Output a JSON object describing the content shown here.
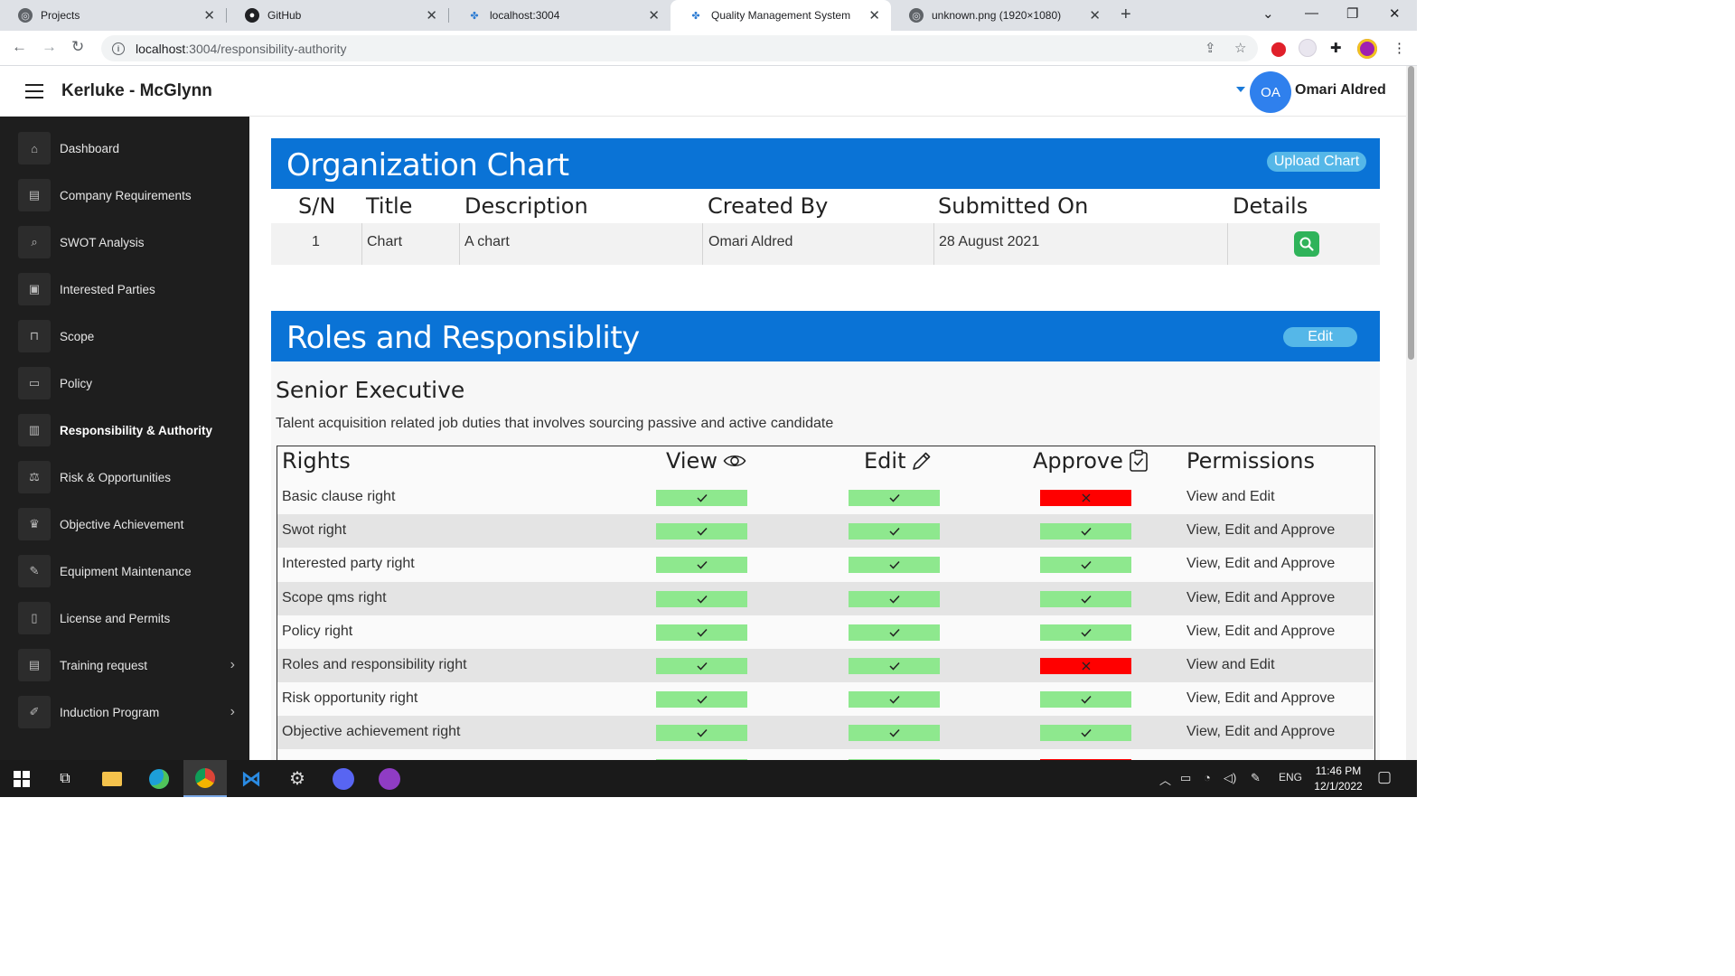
{
  "browser": {
    "tabs": [
      {
        "title": "Projects",
        "icon": "globe-icon"
      },
      {
        "title": "GitHub",
        "icon": "github-icon"
      },
      {
        "title": "localhost:3004",
        "icon": "app-icon"
      },
      {
        "title": "Quality Management System",
        "icon": "app-icon",
        "active": true
      },
      {
        "title": "unknown.png (1920×1080)",
        "icon": "globe-icon"
      }
    ],
    "url_host": "localhost",
    "url_path": ":3004/responsibility-authority"
  },
  "header": {
    "company": "Kerluke - McGlynn",
    "avatar_initials": "OA",
    "user_name": "Omari Aldred"
  },
  "sidebar": {
    "items": [
      {
        "label": "Dashboard",
        "icon": "home-icon"
      },
      {
        "label": "Company Requirements",
        "icon": "clipboard-icon"
      },
      {
        "label": "SWOT Analysis",
        "icon": "search-icon"
      },
      {
        "label": "Interested Parties",
        "icon": "contact-icon"
      },
      {
        "label": "Scope",
        "icon": "binoculars-icon"
      },
      {
        "label": "Policy",
        "icon": "id-card-icon"
      },
      {
        "label": "Responsibility & Authority",
        "icon": "clipboard-list-icon",
        "active": true
      },
      {
        "label": "Risk & Opportunities",
        "icon": "balance-scale-icon"
      },
      {
        "label": "Objective Achievement",
        "icon": "trophy-icon"
      },
      {
        "label": "Equipment Maintenance",
        "icon": "wrench-icon"
      },
      {
        "label": "License and Permits",
        "icon": "file-icon"
      },
      {
        "label": "Training request",
        "icon": "file-text-icon",
        "has_submenu": true
      },
      {
        "label": "Induction Program",
        "icon": "pen-icon",
        "has_submenu": true
      }
    ]
  },
  "org_chart": {
    "title": "Organization Chart",
    "upload_label": "Upload Chart",
    "columns": [
      "S/N",
      "Title",
      "Description",
      "Created By",
      "Submitted On",
      "Details"
    ],
    "rows": [
      {
        "sn": "1",
        "title": "Chart",
        "description": "A chart",
        "created_by": "Omari Aldred",
        "submitted_on": "28 August 2021"
      }
    ]
  },
  "roles": {
    "title": "Roles and Responsiblity",
    "edit_label": "Edit",
    "role_name": "Senior Executive",
    "role_description": "Talent acquisition related job duties that involves sourcing passive and active candidate",
    "headers": {
      "rights": "Rights",
      "view": "View",
      "edit": "Edit",
      "approve": "Approve",
      "permissions": "Permissions"
    },
    "rows": [
      {
        "right": "Basic clause right",
        "view": true,
        "edit": true,
        "approve": false,
        "permissions": "View and Edit"
      },
      {
        "right": "Swot right",
        "view": true,
        "edit": true,
        "approve": true,
        "permissions": "View, Edit and Approve"
      },
      {
        "right": "Interested party right",
        "view": true,
        "edit": true,
        "approve": true,
        "permissions": "View, Edit and Approve"
      },
      {
        "right": "Scope qms right",
        "view": true,
        "edit": true,
        "approve": true,
        "permissions": "View, Edit and Approve"
      },
      {
        "right": "Policy right",
        "view": true,
        "edit": true,
        "approve": true,
        "permissions": "View, Edit and Approve"
      },
      {
        "right": "Roles and responsibility right",
        "view": true,
        "edit": true,
        "approve": false,
        "permissions": "View and Edit"
      },
      {
        "right": "Risk opportunity right",
        "view": true,
        "edit": true,
        "approve": true,
        "permissions": "View, Edit and Approve"
      },
      {
        "right": "Objective achievement right",
        "view": true,
        "edit": true,
        "approve": true,
        "permissions": "View, Edit and Approve"
      },
      {
        "right": "",
        "view": true,
        "edit": true,
        "approve": false,
        "permissions": ""
      }
    ]
  },
  "colors": {
    "accent": "#0a73d6",
    "pill": "#55b7e8",
    "allowed": "#8ee88e",
    "denied": "#ff0000",
    "sidebar_bg": "#1e1e1e"
  },
  "taskbar": {
    "language": "ENG",
    "time": "11:46 PM",
    "date": "12/1/2022"
  }
}
